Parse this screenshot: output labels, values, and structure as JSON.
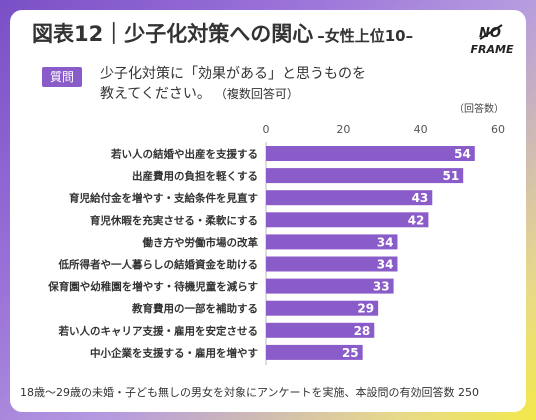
{
  "header": {
    "title": "図表12｜少子化対策への関心",
    "subtitle": "–女性上位10–",
    "logo_text": [
      "NO",
      "FRAME"
    ]
  },
  "question": {
    "badge": "質問",
    "line1": "少子化対策に「効果がある」と思うものを",
    "line2": "教えてください。",
    "note": "（複数回答可）"
  },
  "unit_label": "（回答数）",
  "footer": "18歳〜29歳の未婚・子ども無しの男女を対象にアンケートを実施、本設問の有効回答数 250",
  "colors": {
    "bar": "#8a5cc9",
    "badge": "#8a5cc9",
    "gradient_start": "#7a4fc6",
    "gradient_end": "#f2e94a"
  },
  "chart_data": {
    "type": "bar",
    "orientation": "horizontal",
    "categories": [
      "若い人の結婚や出産を支援する",
      "出産費用の負担を軽くする",
      "育児給付金を増やす・支給条件を見直す",
      "育児休暇を充実させる・柔軟にする",
      "働き方や労働市場の改革",
      "低所得者や一人暮らしの結婚資金を助ける",
      "保育園や幼稚園を増やす・待機児童を減らす",
      "教育費用の一部を補助する",
      "若い人のキャリア支援・雇用を安定させる",
      "中小企業を支援する・雇用を増やす"
    ],
    "values": [
      54,
      51,
      43,
      42,
      34,
      34,
      33,
      29,
      28,
      25
    ],
    "xlim": [
      0,
      60
    ],
    "ticks": [
      0,
      20,
      40,
      60
    ],
    "grid": false,
    "data_labels": true
  }
}
